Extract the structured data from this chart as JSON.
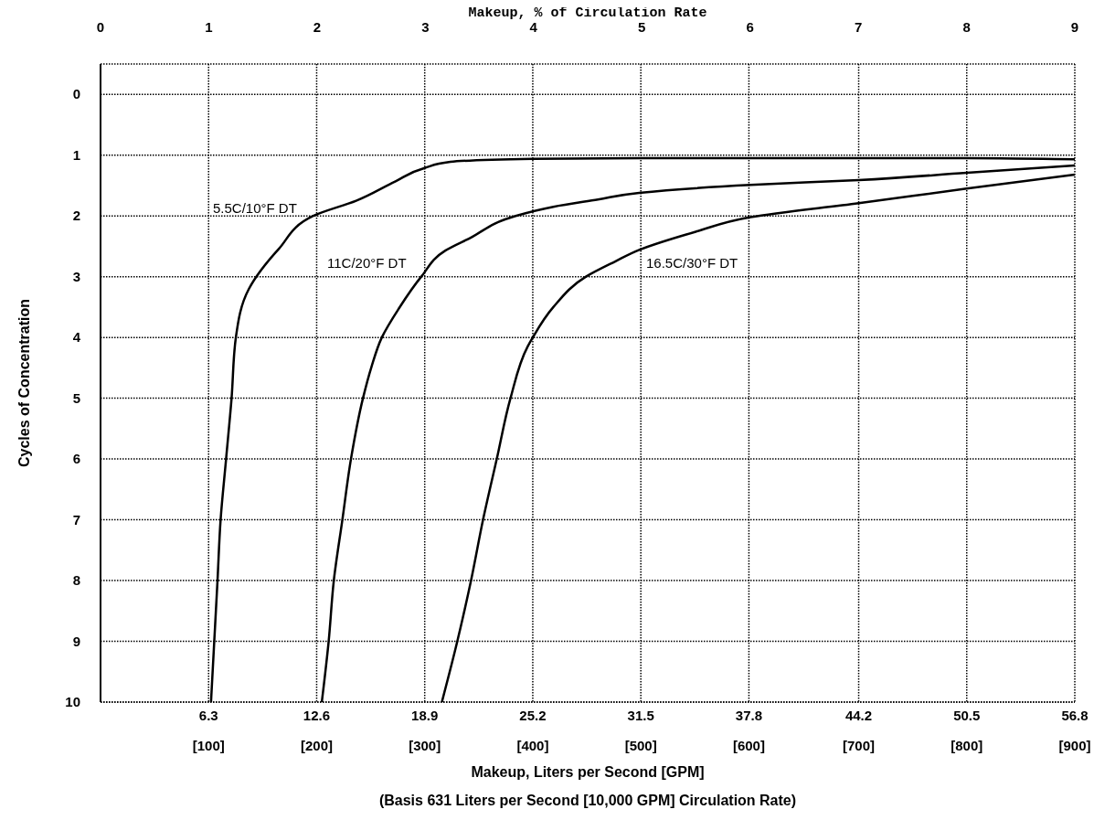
{
  "chart_data": {
    "type": "line",
    "x2label": "Makeup, % of Circulation Rate",
    "xlabel": "Makeup, Liters per Second [GPM]\n(Basis 631 Liters per Second [10,000 GPM] Circulation Rate)",
    "ylabel": "Cycles of Concentration",
    "xlim": [
      0,
      56.8
    ],
    "x2lim": [
      0,
      9
    ],
    "ylim": [
      10,
      -0.5
    ],
    "xticks": [
      6.3,
      12.6,
      18.9,
      25.2,
      31.5,
      37.8,
      44.2,
      50.5,
      56.8
    ],
    "annotations": [
      "[100]",
      "[200]",
      "[300]",
      "[400]",
      "[500]",
      "[600]",
      "[700]",
      "[800]",
      "[900]"
    ],
    "x2ticks": [
      0,
      1,
      2,
      3,
      4,
      5,
      6,
      7,
      8,
      9
    ],
    "yticks": [
      0,
      1,
      2,
      3,
      4,
      5,
      6,
      7,
      8,
      9,
      10
    ],
    "grid": true,
    "series": [
      {
        "name": "5.5C/10°F DT",
        "color": "#000000",
        "x": [
          6.44,
          6.63,
          6.82,
          7.0,
          7.32,
          7.64,
          7.89,
          8.65,
          10.4,
          12.4,
          14.9,
          17.2,
          18.9,
          20.4,
          25.2,
          31.6,
          37.9,
          44.2,
          50.5,
          56.8
        ],
        "values": [
          10,
          9,
          8,
          7,
          6,
          5,
          4,
          3.2,
          2.54,
          2,
          1.75,
          1.43,
          1.21,
          1.11,
          1.06,
          1.05,
          1.05,
          1.05,
          1.05,
          1.07
        ]
      },
      {
        "name": "11C/20°F DT",
        "color": "#000000",
        "x": [
          12.9,
          13.3,
          13.6,
          14.1,
          14.6,
          15.3,
          15.8,
          16.4,
          17.4,
          18.7,
          20.1,
          21.5,
          24.2,
          26.4,
          29.0,
          31.4,
          37.9,
          44.2,
          50.5,
          56.8
        ],
        "values": [
          10,
          9,
          8,
          7,
          6,
          5,
          4.48,
          4,
          3.52,
          3,
          2.57,
          2.37,
          2,
          1.85,
          1.73,
          1.62,
          1.49,
          1.41,
          1.29,
          1.17
        ]
      },
      {
        "name": "16.5C/30°F DT",
        "color": "#000000",
        "x": [
          19.9,
          20.8,
          21.6,
          22.3,
          23.1,
          23.9,
          24.9,
          25.2,
          26.4,
          28.3,
          30.0,
          31.4,
          34.7,
          37.9,
          44.2,
          50.5,
          56.8
        ],
        "values": [
          10,
          9,
          8,
          7,
          6,
          5,
          4.15,
          4,
          3.5,
          3,
          2.75,
          2.56,
          2.26,
          2.02,
          1.79,
          1.55,
          1.32
        ]
      }
    ]
  }
}
